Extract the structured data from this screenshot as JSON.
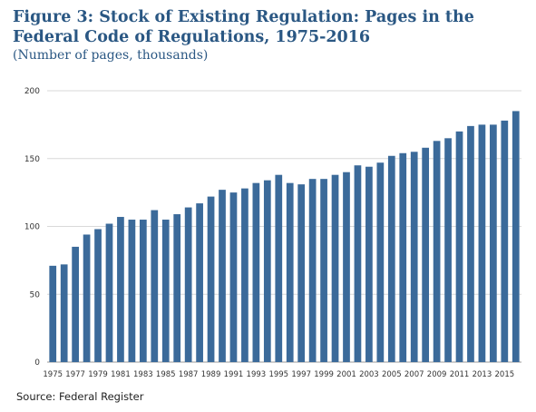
{
  "chart_data": {
    "type": "bar",
    "title": "Figure 3: Stock of Existing Regulation: Pages in the Federal Code of Regulations, 1975-2016",
    "subtitle": "(Number of pages, thousands)",
    "source": "Source: Federal Register",
    "xlabel": "",
    "ylabel": "",
    "ylim": [
      0,
      200
    ],
    "yticks": [
      0,
      50,
      100,
      150,
      200
    ],
    "grid": true,
    "bar_color": "#3b6a9a",
    "categories": [
      "1975",
      "1976",
      "1977",
      "1978",
      "1979",
      "1980",
      "1981",
      "1982",
      "1983",
      "1984",
      "1985",
      "1986",
      "1987",
      "1988",
      "1989",
      "1990",
      "1991",
      "1992",
      "1993",
      "1994",
      "1995",
      "1996",
      "1997",
      "1998",
      "1999",
      "2000",
      "2001",
      "2002",
      "2003",
      "2004",
      "2005",
      "2006",
      "2007",
      "2008",
      "2009",
      "2010",
      "2011",
      "2012",
      "2013",
      "2014",
      "2015",
      "2016"
    ],
    "xtick_labels": [
      "1975",
      "1977",
      "1979",
      "1981",
      "1983",
      "1985",
      "1987",
      "1989",
      "1991",
      "1993",
      "1995",
      "1997",
      "1999",
      "2001",
      "2003",
      "2005",
      "2007",
      "2009",
      "2011",
      "2013",
      "2015"
    ],
    "values": [
      71,
      72,
      85,
      94,
      98,
      102,
      107,
      105,
      105,
      112,
      105,
      109,
      114,
      117,
      122,
      127,
      125,
      128,
      132,
      134,
      138,
      132,
      131,
      135,
      135,
      138,
      140,
      145,
      144,
      147,
      152,
      154,
      155,
      158,
      163,
      165,
      170,
      174,
      175,
      175,
      178,
      185
    ]
  }
}
